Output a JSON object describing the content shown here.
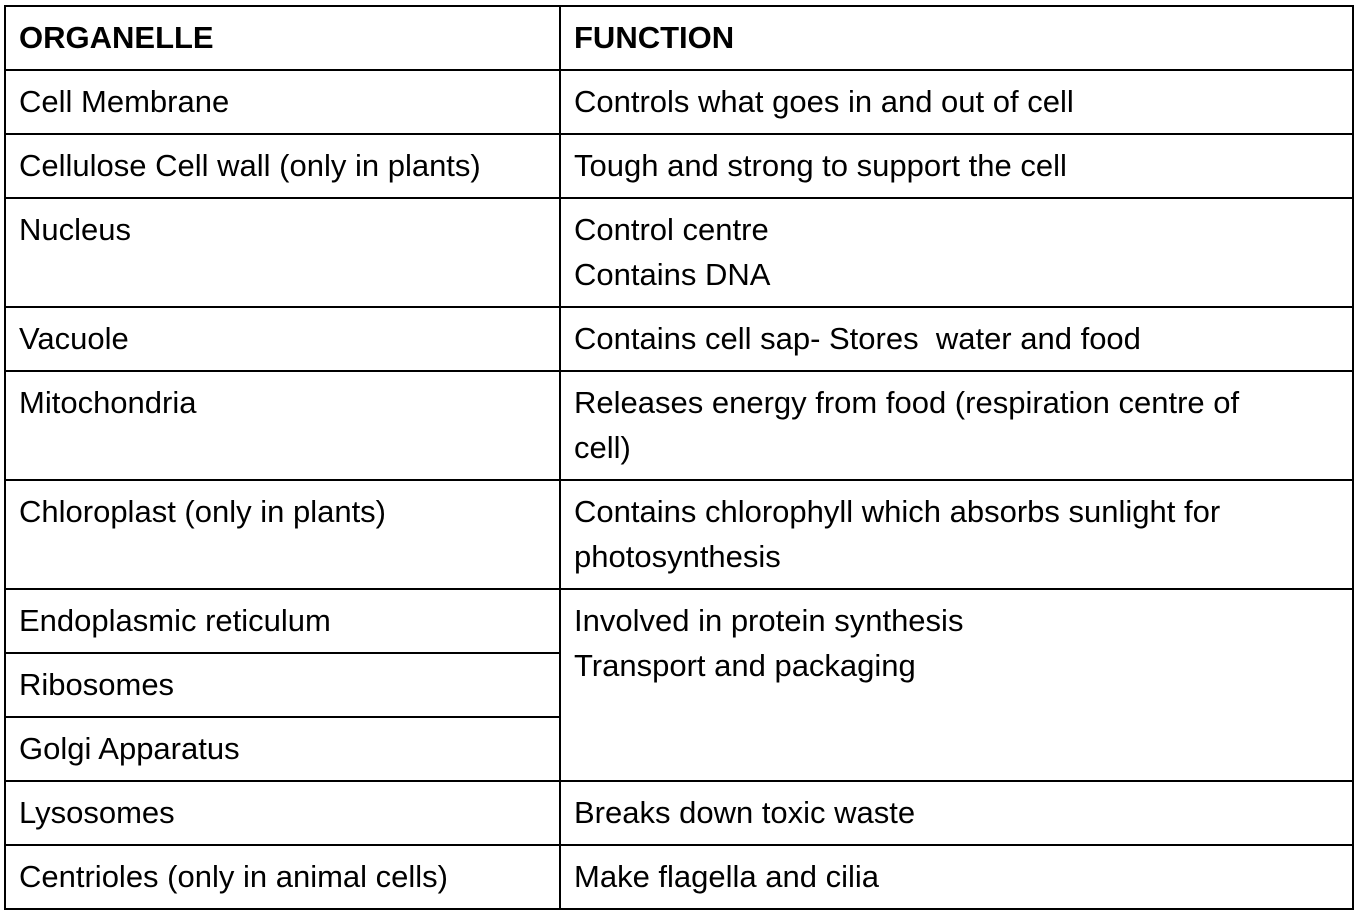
{
  "headers": {
    "organelle": "ORGANELLE",
    "function": "FUNCTION"
  },
  "rows": [
    {
      "organelle": "Cell Membrane",
      "function": [
        "Controls what goes in and out of cell"
      ]
    },
    {
      "organelle": "Cellulose Cell wall (only in plants)",
      "function": [
        "Tough and strong to support the cell"
      ]
    },
    {
      "organelle": "Nucleus",
      "function": [
        "Control centre",
        "Contains DNA"
      ]
    },
    {
      "organelle": "Vacuole",
      "function": [
        "Contains cell sap- Stores  water and food"
      ]
    },
    {
      "organelle": "Mitochondria",
      "function": [
        "Releases energy from food (respiration centre of",
        "cell)"
      ]
    },
    {
      "organelle": "Chloroplast (only in plants)",
      "function": [
        "Contains chlorophyll which absorbs sunlight for",
        "photosynthesis"
      ]
    },
    {
      "organelle": "Endoplasmic reticulum",
      "function": [
        "Involved in protein synthesis",
        "Transport and packaging"
      ]
    },
    {
      "organelle": "Ribosomes"
    },
    {
      "organelle": "Golgi Apparatus"
    },
    {
      "organelle": "Lysosomes",
      "function": [
        "Breaks down toxic waste"
      ]
    },
    {
      "organelle": "Centrioles (only in animal cells)",
      "function": [
        "Make flagella and cilia"
      ]
    }
  ]
}
